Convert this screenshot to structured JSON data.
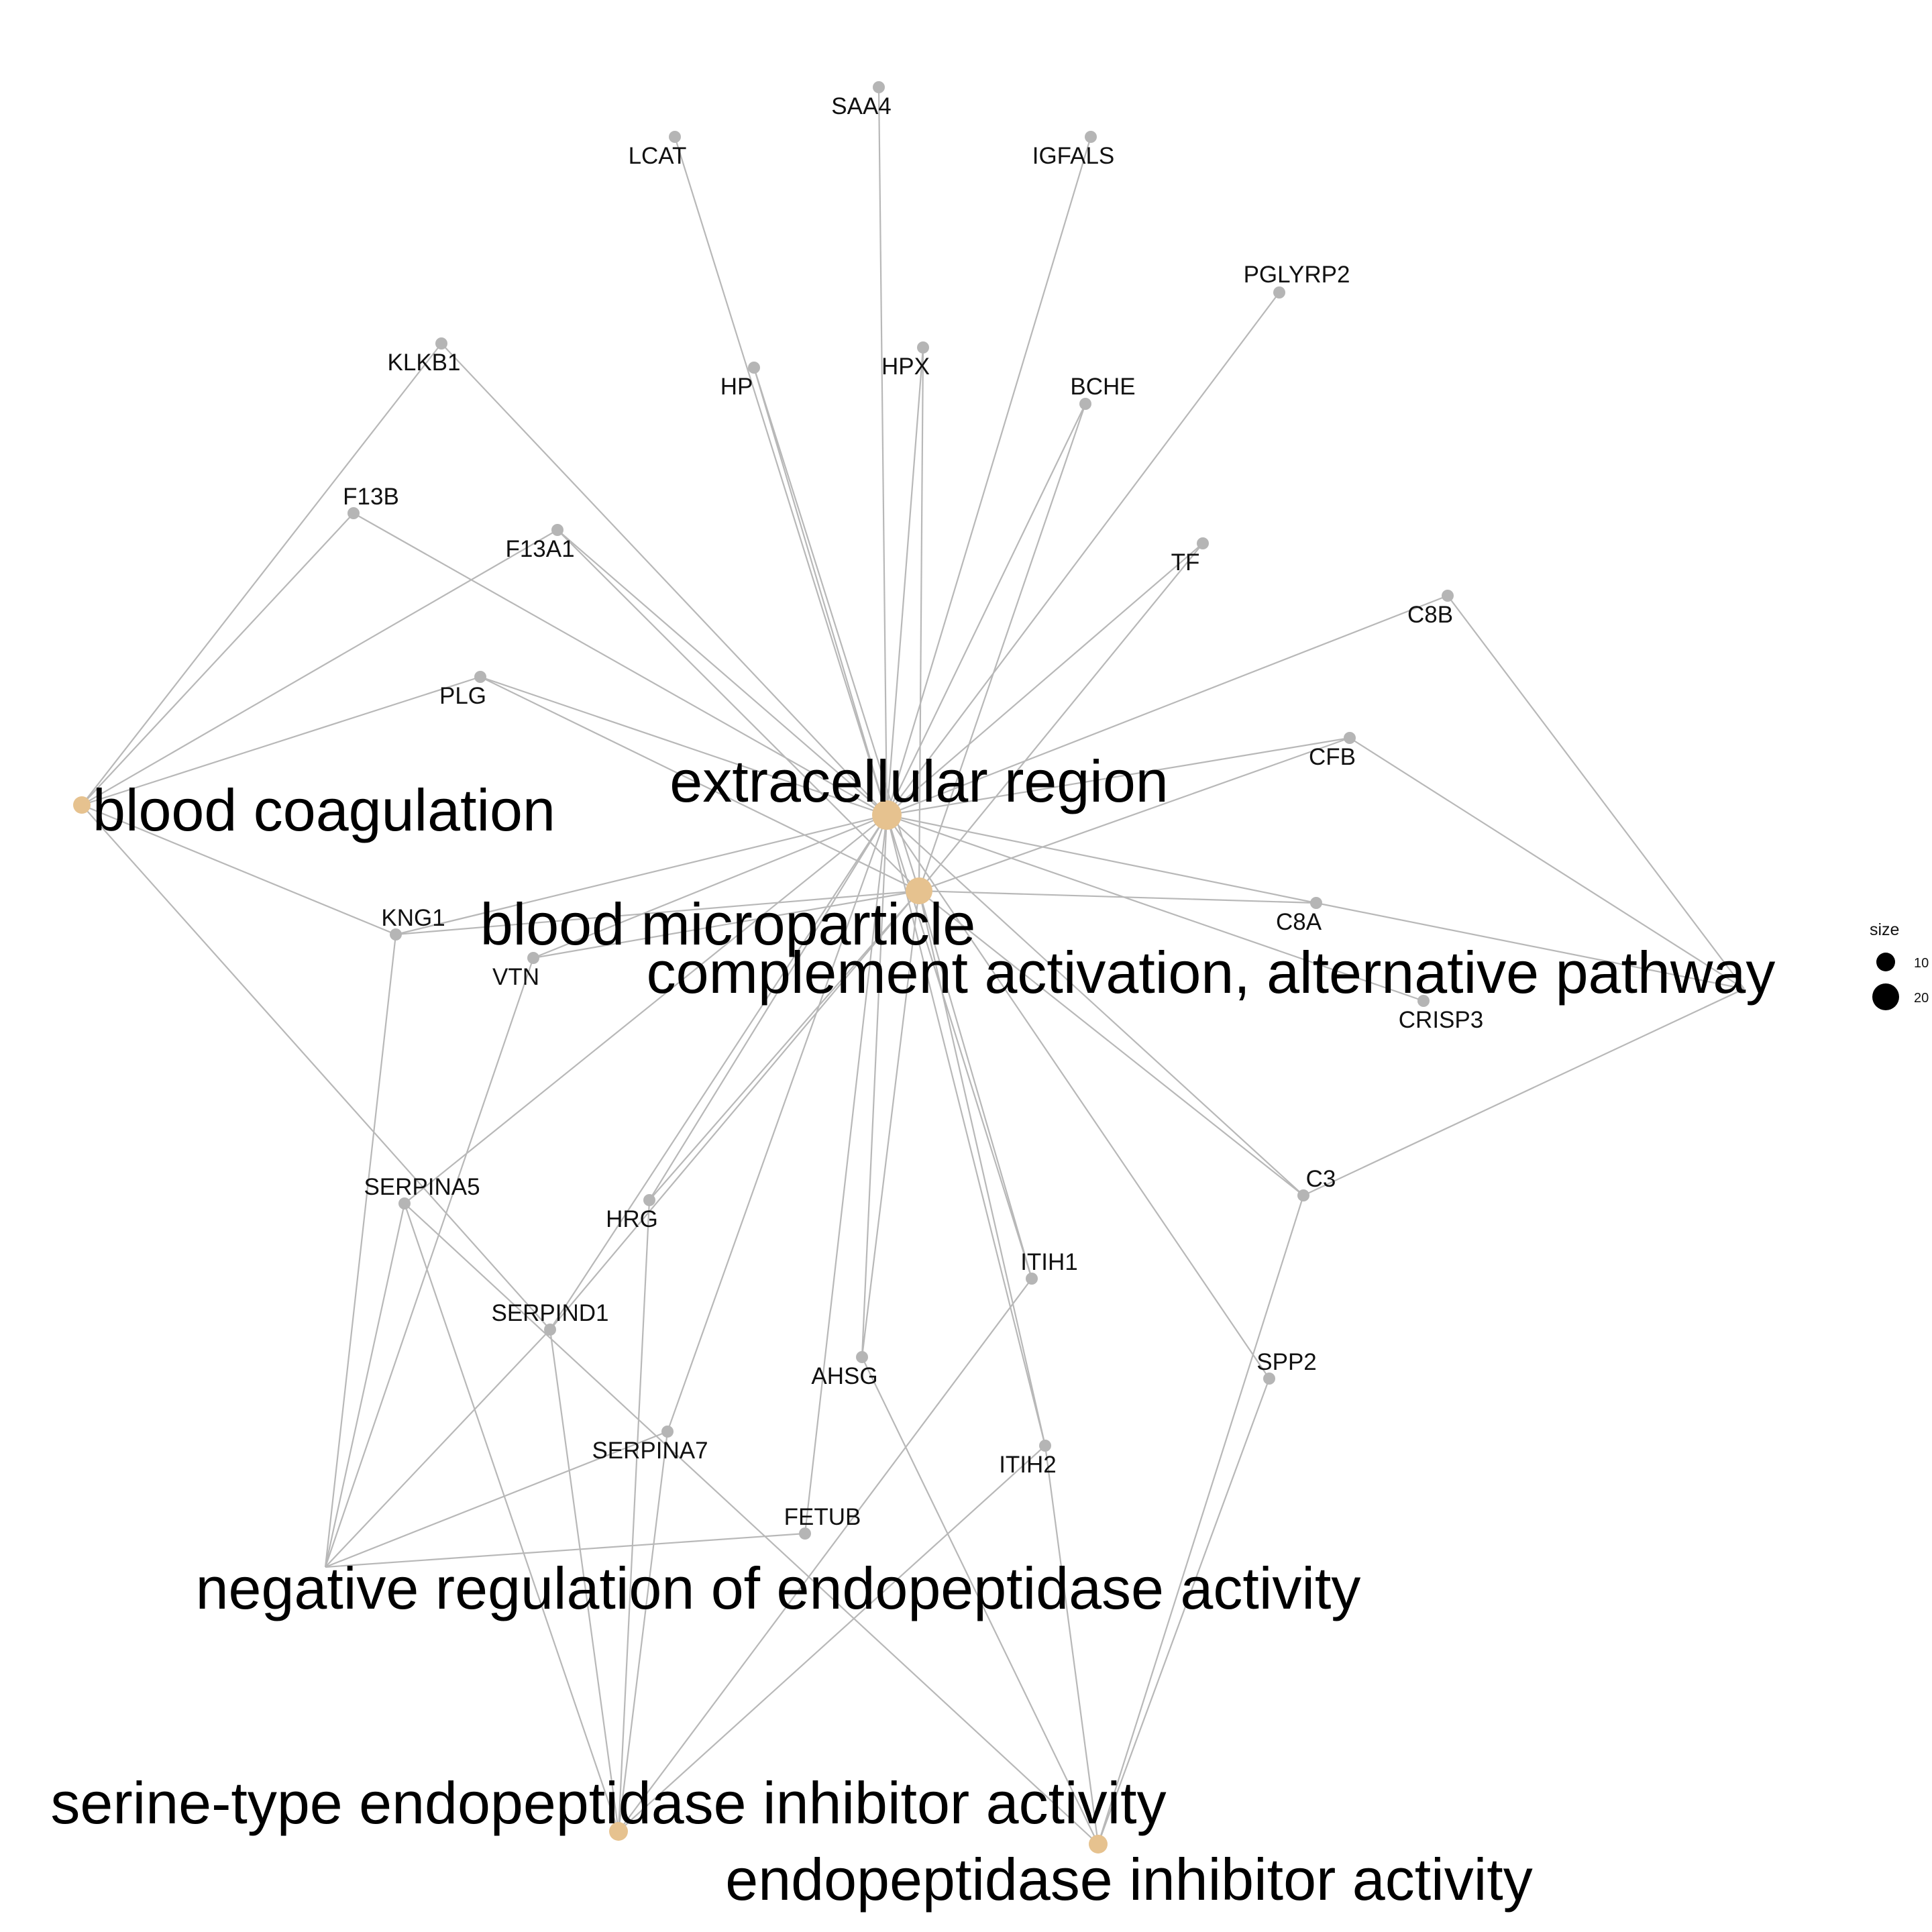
{
  "colors": {
    "edge": "#b8b8b8",
    "gene_node": "#b5b5b5",
    "term_node": "#e6c28f",
    "text": "#111111"
  },
  "terms": [
    {
      "id": "bc",
      "label": "blood coagulation",
      "size": 10
    },
    {
      "id": "er",
      "label": "extracellular region",
      "size": 20
    },
    {
      "id": "bm",
      "label": "blood microparticle",
      "size": 20
    },
    {
      "id": "caa",
      "label": "complement activation, alternative pathway",
      "size": 10
    },
    {
      "id": "nre",
      "label": "negative regulation of endopeptidase activity",
      "size": 10
    },
    {
      "id": "sei",
      "label": "serine-type endopeptidase inhibitor activity",
      "size": 10
    },
    {
      "id": "eia",
      "label": "endopeptidase inhibitor activity",
      "size": 10
    }
  ],
  "genes": [
    {
      "id": "SAA4",
      "label": "SAA4"
    },
    {
      "id": "LCAT",
      "label": "LCAT"
    },
    {
      "id": "IGFALS",
      "label": "IGFALS"
    },
    {
      "id": "PGLYRP2",
      "label": "PGLYRP2"
    },
    {
      "id": "KLKB1",
      "label": "KLKB1"
    },
    {
      "id": "HP",
      "label": "HP"
    },
    {
      "id": "HPX",
      "label": "HPX"
    },
    {
      "id": "BCHE",
      "label": "BCHE"
    },
    {
      "id": "F13B",
      "label": "F13B"
    },
    {
      "id": "F13A1",
      "label": "F13A1"
    },
    {
      "id": "TF",
      "label": "TF"
    },
    {
      "id": "C8B",
      "label": "C8B"
    },
    {
      "id": "PLG",
      "label": "PLG"
    },
    {
      "id": "CFB",
      "label": "CFB"
    },
    {
      "id": "KNG1",
      "label": "KNG1"
    },
    {
      "id": "C8A",
      "label": "C8A"
    },
    {
      "id": "VTN",
      "label": "VTN"
    },
    {
      "id": "CRISP3",
      "label": "CRISP3"
    },
    {
      "id": "SERPINA5",
      "label": "SERPINA5"
    },
    {
      "id": "C3",
      "label": "C3"
    },
    {
      "id": "HRG",
      "label": "HRG"
    },
    {
      "id": "ITIH1",
      "label": "ITIH1"
    },
    {
      "id": "SERPIND1",
      "label": "SERPIND1"
    },
    {
      "id": "SPP2",
      "label": "SPP2"
    },
    {
      "id": "AHSG",
      "label": "AHSG"
    },
    {
      "id": "SERPINA7",
      "label": "SERPINA7"
    },
    {
      "id": "ITIH2",
      "label": "ITIH2"
    },
    {
      "id": "FETUB",
      "label": "FETUB"
    }
  ],
  "edges": [
    [
      "er",
      "SAA4"
    ],
    [
      "er",
      "LCAT"
    ],
    [
      "er",
      "IGFALS"
    ],
    [
      "er",
      "PGLYRP2"
    ],
    [
      "er",
      "KLKB1"
    ],
    [
      "er",
      "HP"
    ],
    [
      "er",
      "HPX"
    ],
    [
      "er",
      "BCHE"
    ],
    [
      "er",
      "F13B"
    ],
    [
      "er",
      "F13A1"
    ],
    [
      "er",
      "TF"
    ],
    [
      "er",
      "C8B"
    ],
    [
      "er",
      "PLG"
    ],
    [
      "er",
      "CFB"
    ],
    [
      "er",
      "KNG1"
    ],
    [
      "er",
      "C8A"
    ],
    [
      "er",
      "VTN"
    ],
    [
      "er",
      "CRISP3"
    ],
    [
      "er",
      "SERPINA5"
    ],
    [
      "er",
      "C3"
    ],
    [
      "er",
      "HRG"
    ],
    [
      "er",
      "ITIH1"
    ],
    [
      "er",
      "SERPIND1"
    ],
    [
      "er",
      "SPP2"
    ],
    [
      "er",
      "AHSG"
    ],
    [
      "er",
      "SERPINA7"
    ],
    [
      "er",
      "ITIH2"
    ],
    [
      "er",
      "FETUB"
    ],
    [
      "bm",
      "HP"
    ],
    [
      "bm",
      "HPX"
    ],
    [
      "bm",
      "BCHE"
    ],
    [
      "bm",
      "F13A1"
    ],
    [
      "bm",
      "TF"
    ],
    [
      "bm",
      "PLG"
    ],
    [
      "bm",
      "CFB"
    ],
    [
      "bm",
      "KNG1"
    ],
    [
      "bm",
      "C8A"
    ],
    [
      "bm",
      "VTN"
    ],
    [
      "bm",
      "C3"
    ],
    [
      "bm",
      "HRG"
    ],
    [
      "bm",
      "ITIH1"
    ],
    [
      "bm",
      "SERPIND1"
    ],
    [
      "bm",
      "AHSG"
    ],
    [
      "bm",
      "ITIH2"
    ],
    [
      "bc",
      "KLKB1"
    ],
    [
      "bc",
      "F13B"
    ],
    [
      "bc",
      "F13A1"
    ],
    [
      "bc",
      "PLG"
    ],
    [
      "bc",
      "KNG1"
    ],
    [
      "bc",
      "SERPIND1"
    ],
    [
      "caa",
      "C8B"
    ],
    [
      "caa",
      "CFB"
    ],
    [
      "caa",
      "C8A"
    ],
    [
      "caa",
      "C3"
    ],
    [
      "nre",
      "KNG1"
    ],
    [
      "nre",
      "VTN"
    ],
    [
      "nre",
      "SERPINA5"
    ],
    [
      "nre",
      "SERPIND1"
    ],
    [
      "nre",
      "SERPINA7"
    ],
    [
      "nre",
      "FETUB"
    ],
    [
      "sei",
      "SERPINA5"
    ],
    [
      "sei",
      "HRG"
    ],
    [
      "sei",
      "SERPIND1"
    ],
    [
      "sei",
      "SERPINA7"
    ],
    [
      "sei",
      "ITIH1"
    ],
    [
      "sei",
      "ITIH2"
    ],
    [
      "eia",
      "SERPINA5"
    ],
    [
      "eia",
      "AHSG"
    ],
    [
      "eia",
      "ITIH2"
    ],
    [
      "eia",
      "C3"
    ],
    [
      "eia",
      "SPP2"
    ]
  ],
  "legend": {
    "title": "size",
    "entries": [
      {
        "label": "10",
        "value": 10
      },
      {
        "label": "20",
        "value": 20
      }
    ]
  }
}
